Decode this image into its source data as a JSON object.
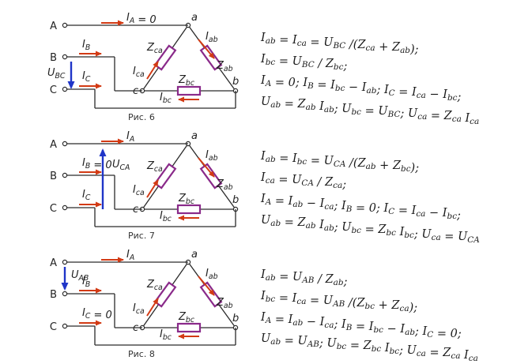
{
  "figures": [
    {
      "caption": "Рис. 6",
      "terminal_labels": [
        "A",
        "B",
        "C"
      ],
      "node_labels": [
        "a",
        "b",
        "c"
      ],
      "line_currents": [
        "I_A = 0",
        "I_B",
        "I_C"
      ],
      "source_voltage": "U_BC",
      "phase_labels": {
        "ab": "I_ab",
        "bc": "I_bc",
        "ca": "I_ca"
      },
      "impedances": {
        "ab": "Z_ab",
        "bc": "Z_bc",
        "ca": "Z_ca"
      },
      "equations": [
        "I_ab = I_ca = U_BC /(Z_ca + Z_ab);",
        "I_bc = U_BC / Z_bc;",
        "I_A = 0; I_B = I_bc − I_ab; I_C = I_ca − I_bc;",
        "U_ab = Z_ab I_ab; U_bc = U_BC; U_ca = Z_ca I_ca"
      ]
    },
    {
      "caption": "Рис. 7",
      "terminal_labels": [
        "A",
        "B",
        "C"
      ],
      "node_labels": [
        "a",
        "b",
        "c"
      ],
      "line_currents": [
        "I_A",
        "I_B = 0",
        "I_C"
      ],
      "source_voltage": "U_CA",
      "phase_labels": {
        "ab": "I_ab",
        "bc": "I_bc",
        "ca": "I_ca"
      },
      "impedances": {
        "ab": "Z_ab",
        "bc": "Z_bc",
        "ca": "Z_ca"
      },
      "equations": [
        "I_ab = I_bc = U_CA /(Z_ab + Z_bc);",
        "I_ca = U_CA / Z_ca;",
        "I_A = I_ab − I_ca; I_B = 0; I_C = I_ca − I_bc;",
        "U_ab = Z_ab I_ab; U_bc = Z_bc I_bc; U_ca = U_CA"
      ]
    },
    {
      "caption": "Рис. 8",
      "terminal_labels": [
        "A",
        "B",
        "C"
      ],
      "node_labels": [
        "a",
        "b",
        "c"
      ],
      "line_currents": [
        "I_A",
        "I_B",
        "I_C = 0"
      ],
      "source_voltage": "U_AB",
      "phase_labels": {
        "ab": "I_ab",
        "bc": "I_bc",
        "ca": "I_ca"
      },
      "impedances": {
        "ab": "Z_ab",
        "bc": "Z_bc",
        "ca": "Z_ca"
      },
      "equations": [
        "I_ab = U_AB / Z_ab;",
        "I_bc = I_ca = U_AB /(Z_bc + Z_ca);",
        "I_A = I_ab − I_ca; I_B = I_bc − I_ab; I_C = 0;",
        "U_ab = U_AB; U_bc = Z_bc I_bc; U_ca = Z_ca I_ca"
      ]
    }
  ],
  "colors": {
    "current_arrow": "#d23a14",
    "voltage_arrow": "#1f35c8",
    "impedance": "#8a2a8a",
    "wire": "#2a2a2a"
  }
}
